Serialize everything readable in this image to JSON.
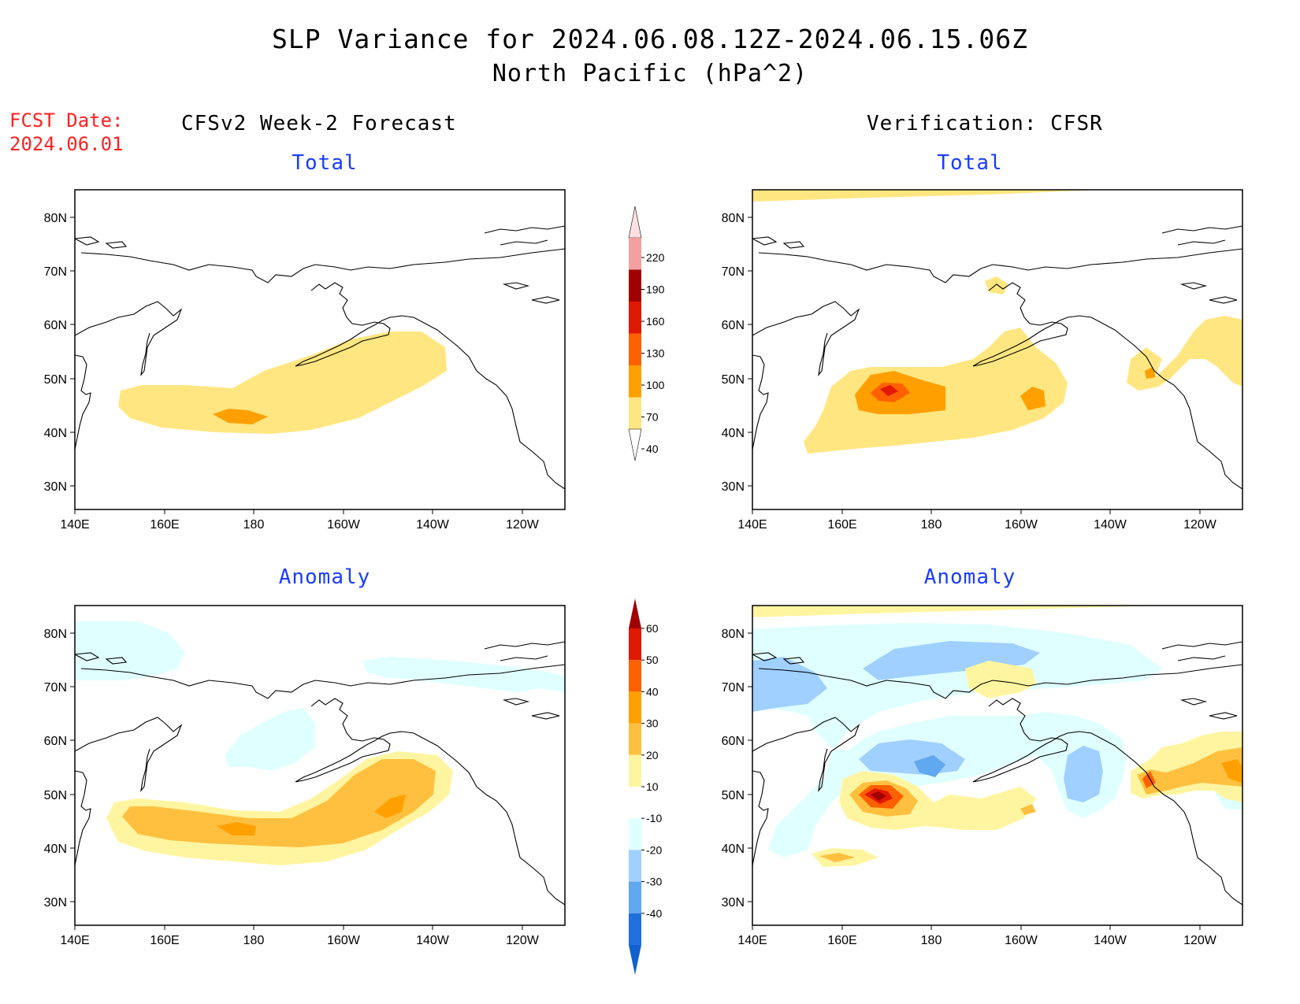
{
  "title": {
    "line1": "SLP Variance for 2024.06.08.12Z-2024.06.15.06Z",
    "line2": "North Pacific (hPa^2)"
  },
  "fcst": {
    "label": "FCST Date:",
    "date": "2024.06.01"
  },
  "columns": {
    "left": "CFSv2 Week-2 Forecast",
    "right": "Verification: CFSR"
  },
  "panels": {
    "tl": {
      "title": "Total"
    },
    "tr": {
      "title": "Total"
    },
    "bl": {
      "title": "Anomaly"
    },
    "br": {
      "title": "Anomaly"
    }
  },
  "axes": {
    "lat_labels": [
      "80N",
      "70N",
      "60N",
      "50N",
      "40N",
      "30N"
    ],
    "lon_labels": [
      "140E",
      "160E",
      "180",
      "160W",
      "140W",
      "120W"
    ]
  },
  "colorbars": {
    "total": {
      "labels": [
        "220",
        "190",
        "160",
        "130",
        "100",
        "70",
        "40"
      ],
      "colors": [
        "#f5a0a0",
        "#a00000",
        "#e01800",
        "#ff6000",
        "#ffa000",
        "#ffe680"
      ]
    },
    "anomaly": {
      "labels": [
        "60",
        "50",
        "40",
        "30",
        "20",
        "10",
        "-10",
        "-20",
        "-30",
        "-40"
      ],
      "colors_top": "#a00000",
      "colors_bottom": "#1060d0",
      "colors": [
        "#e01800",
        "#ff6000",
        "#ffa000",
        "#ffc040",
        "#fff5a0",
        "#ffffff",
        "#e0ffff",
        "#a0d0ff",
        "#60a8f0",
        "#2070e0"
      ]
    }
  },
  "fill_colors": {
    "c40": "#ffe680",
    "c70": "#ffa000",
    "c100": "#ff6000",
    "c130": "#e01800",
    "c160": "#a00000",
    "a10": "#fff5a0",
    "a20": "#ffc040",
    "a30": "#ffa000",
    "a40": "#ff6000",
    "a50": "#e01800",
    "a60": "#a00000",
    "n10": "#e0ffff",
    "n20": "#a0d0ff",
    "n30": "#60a8f0",
    "n40": "#2070e0"
  }
}
